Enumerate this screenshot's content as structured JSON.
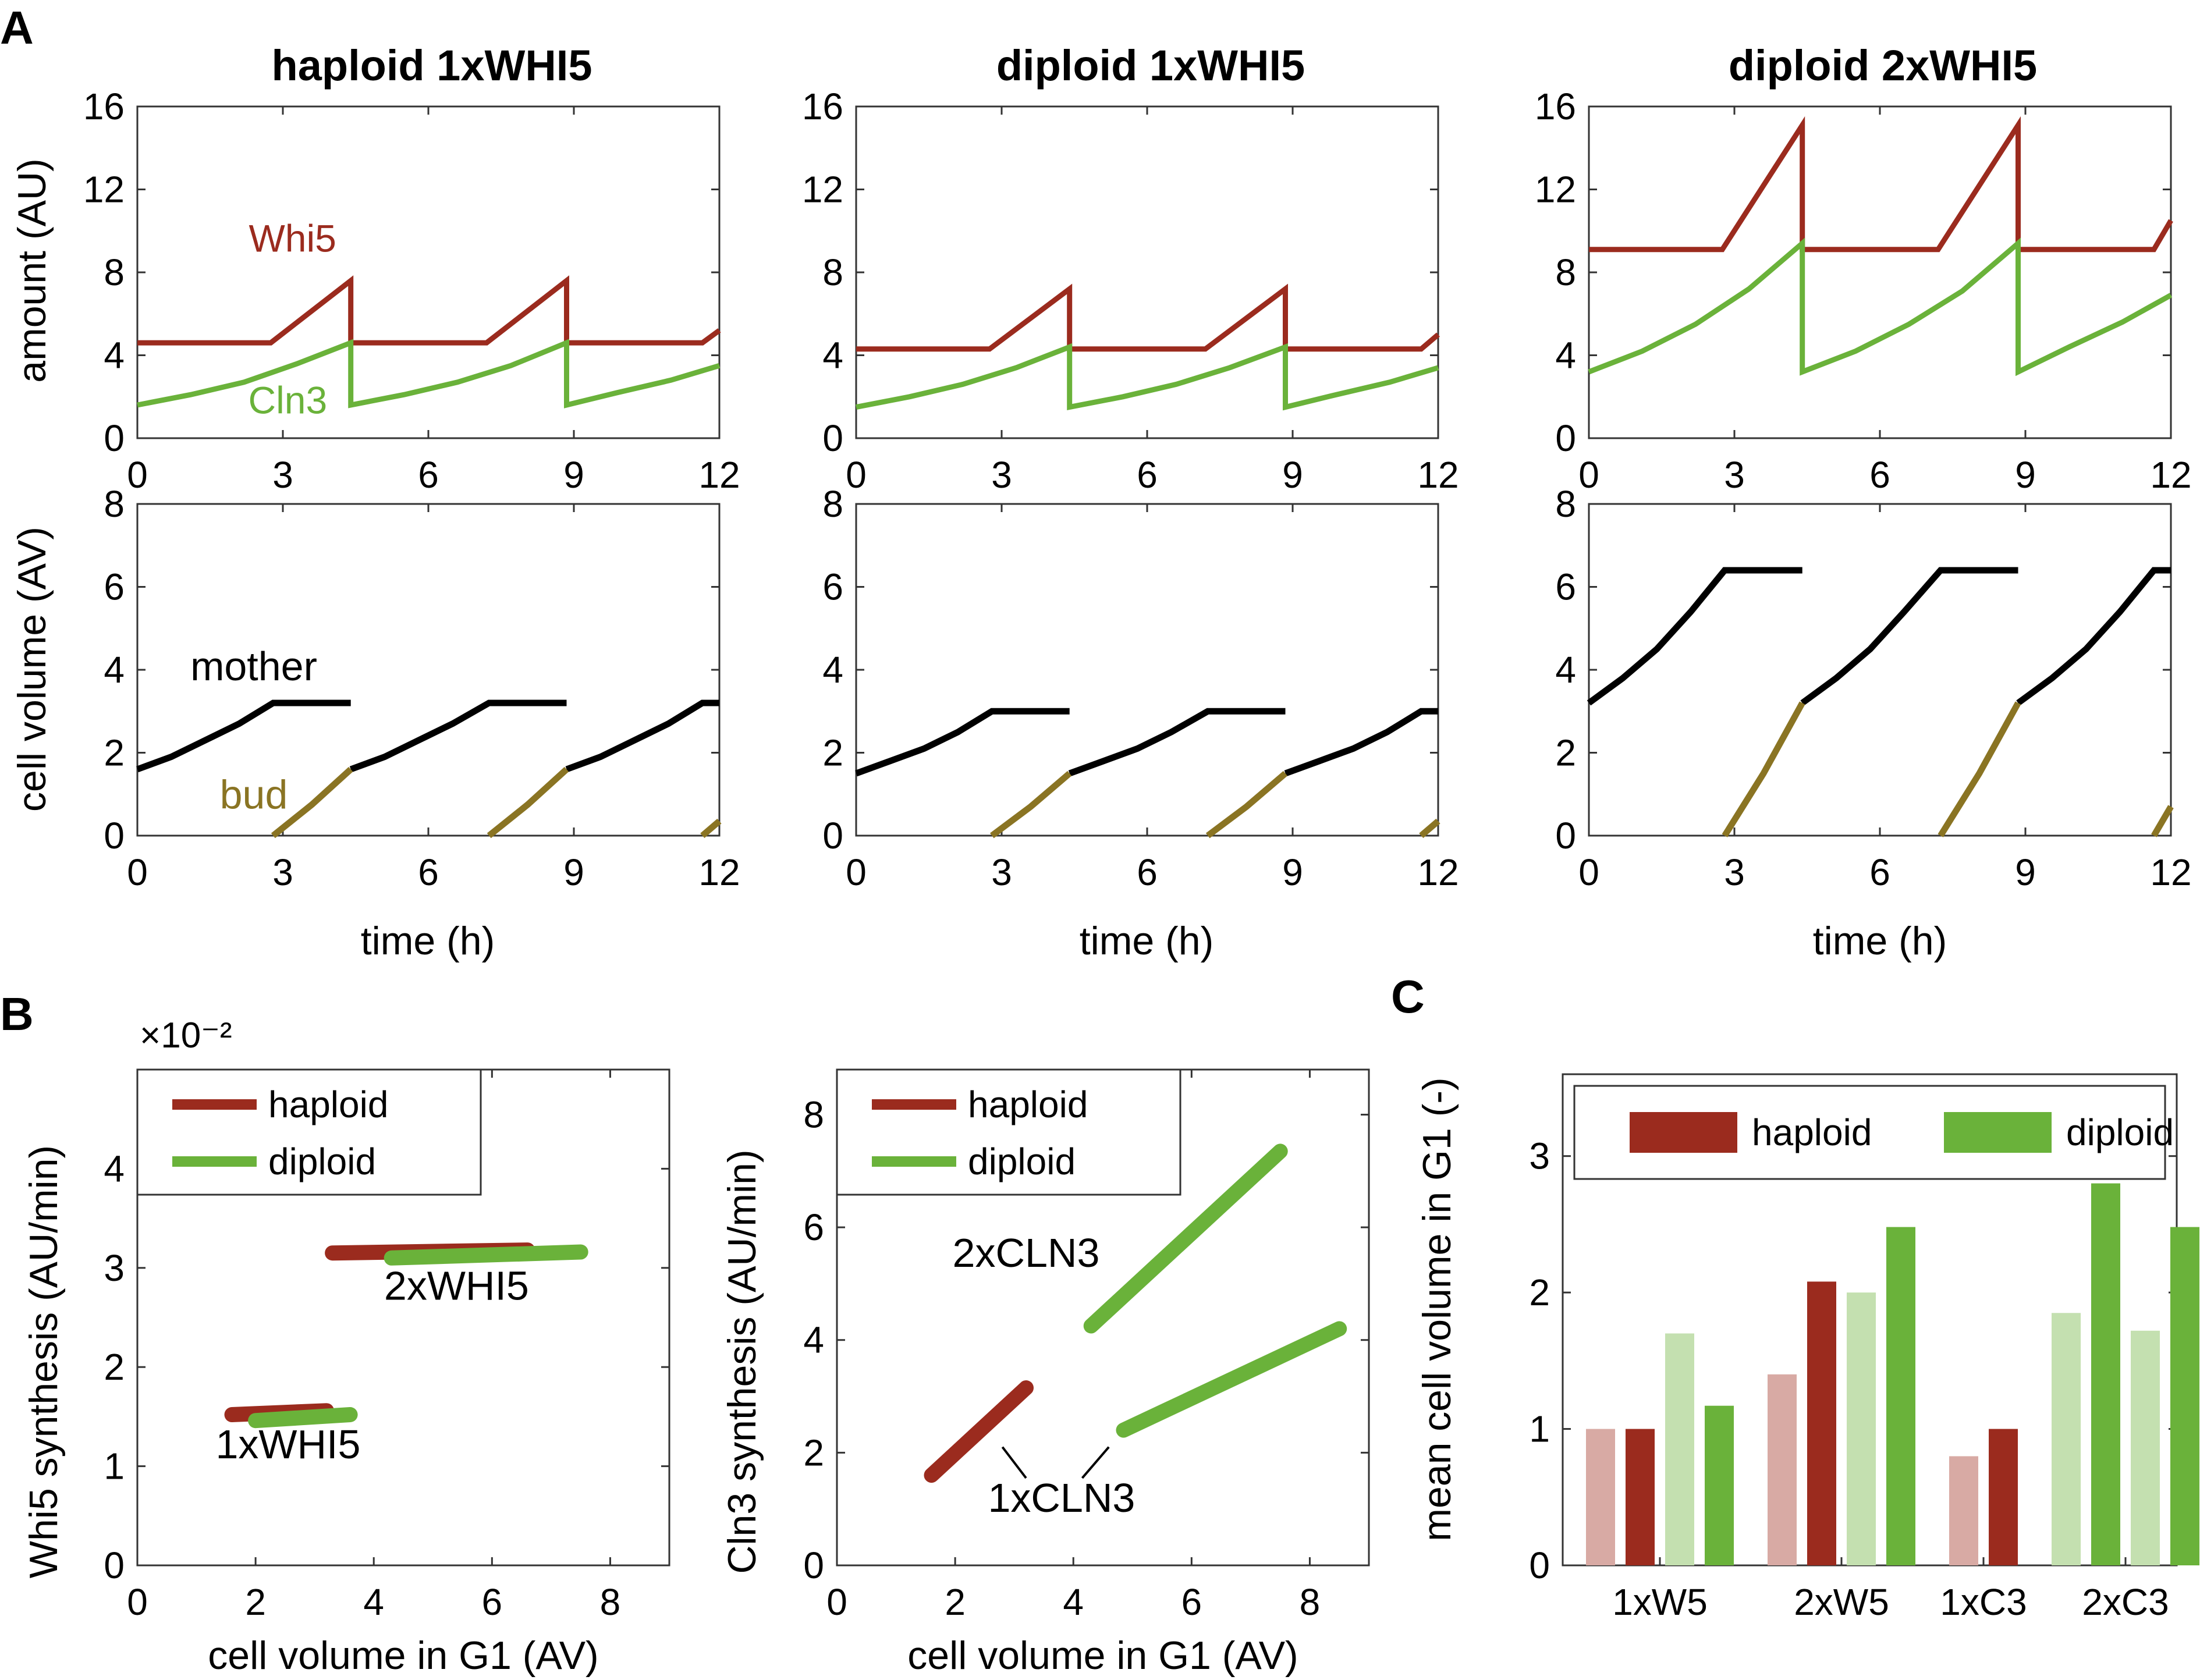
{
  "panel_labels": {
    "A": "A",
    "B": "B",
    "C": "C"
  },
  "colors": {
    "whi5": "#9b2b1e",
    "cln3": "#6ab23a",
    "mother": "#000000",
    "bud": "#8a7423",
    "haploid": "#9b2b1e",
    "diploid": "#6ab23a",
    "haploid_light": "#d8aaa4",
    "diploid_light": "#c4e0b0"
  },
  "chart_data": [
    {
      "id": "A-amount-haploid",
      "type": "line",
      "title": "haploid 1xWHI5",
      "xlabel": "",
      "ylabel": "amount (AU)",
      "xlim": [
        0,
        12
      ],
      "ylim": [
        0,
        16
      ],
      "xticks": [
        "0",
        "3",
        "6",
        "9",
        "12"
      ],
      "yticks": [
        "0",
        "4",
        "8",
        "12",
        "16"
      ],
      "series": [
        {
          "name": "Whi5",
          "color": "whi5",
          "x": [
            0,
            2.75,
            4.4,
            4.4,
            7.2,
            8.85,
            8.85,
            11.65,
            12
          ],
          "y": [
            4.6,
            4.6,
            7.6,
            4.6,
            4.6,
            7.6,
            4.6,
            4.6,
            5.2
          ]
        },
        {
          "name": "Cln3",
          "color": "cln3",
          "x": [
            0,
            1.1,
            2.2,
            3.3,
            4.4,
            4.4,
            5.5,
            6.6,
            7.7,
            8.85,
            8.85,
            9.9,
            11,
            12
          ],
          "y": [
            1.6,
            2.1,
            2.7,
            3.6,
            4.6,
            1.6,
            2.1,
            2.7,
            3.5,
            4.6,
            1.6,
            2.2,
            2.8,
            3.5
          ]
        }
      ],
      "annotations": [
        {
          "text": "Whi5",
          "color": "whi5"
        },
        {
          "text": "Cln3",
          "color": "cln3"
        }
      ]
    },
    {
      "id": "A-amount-dip1",
      "type": "line",
      "title": "diploid 1xWHI5",
      "xlim": [
        0,
        12
      ],
      "ylim": [
        0,
        16
      ],
      "xticks": [
        "0",
        "3",
        "6",
        "9",
        "12"
      ],
      "yticks": [
        "0",
        "4",
        "8",
        "12",
        "16"
      ],
      "series": [
        {
          "color": "whi5",
          "x": [
            0,
            2.75,
            4.4,
            4.4,
            7.2,
            8.85,
            8.85,
            11.65,
            12
          ],
          "y": [
            4.3,
            4.3,
            7.2,
            4.3,
            4.3,
            7.2,
            4.3,
            4.3,
            5.0
          ]
        },
        {
          "color": "cln3",
          "x": [
            0,
            1.1,
            2.2,
            3.3,
            4.4,
            4.4,
            5.5,
            6.6,
            7.7,
            8.85,
            8.85,
            9.9,
            11,
            12
          ],
          "y": [
            1.5,
            2.0,
            2.6,
            3.4,
            4.4,
            1.5,
            2.0,
            2.6,
            3.4,
            4.4,
            1.5,
            2.1,
            2.7,
            3.4
          ]
        }
      ]
    },
    {
      "id": "A-amount-dip2",
      "type": "line",
      "title": "diploid 2xWHI5",
      "xlim": [
        0,
        12
      ],
      "ylim": [
        0,
        16
      ],
      "xticks": [
        "0",
        "3",
        "6",
        "9",
        "12"
      ],
      "yticks": [
        "0",
        "4",
        "8",
        "12",
        "16"
      ],
      "series": [
        {
          "color": "whi5",
          "x": [
            0,
            2.75,
            4.4,
            4.4,
            7.2,
            8.85,
            8.85,
            11.65,
            12
          ],
          "y": [
            9.1,
            9.1,
            15.1,
            9.1,
            9.1,
            15.1,
            9.1,
            9.1,
            10.5
          ]
        },
        {
          "color": "cln3",
          "x": [
            0,
            1.1,
            2.2,
            3.3,
            4.4,
            4.4,
            5.5,
            6.6,
            7.7,
            8.85,
            8.85,
            9.9,
            11,
            12
          ],
          "y": [
            3.2,
            4.2,
            5.5,
            7.2,
            9.4,
            3.2,
            4.2,
            5.5,
            7.1,
            9.4,
            3.2,
            4.4,
            5.6,
            6.9
          ]
        }
      ]
    },
    {
      "id": "A-volume-haploid",
      "type": "line",
      "xlabel": "time (h)",
      "ylabel": "cell volume (AV)",
      "xlim": [
        0,
        12
      ],
      "ylim": [
        0,
        8
      ],
      "xticks": [
        "0",
        "3",
        "6",
        "9",
        "12"
      ],
      "yticks": [
        "0",
        "2",
        "4",
        "6",
        "8"
      ],
      "series": [
        {
          "name": "mother",
          "color": "mother",
          "segments": [
            {
              "x": [
                0,
                0.7,
                1.4,
                2.1,
                2.8,
                4.4
              ],
              "y": [
                1.6,
                1.9,
                2.3,
                2.7,
                3.2,
                3.2
              ]
            },
            {
              "x": [
                4.4,
                5.1,
                5.8,
                6.5,
                7.25,
                8.85
              ],
              "y": [
                1.6,
                1.9,
                2.3,
                2.7,
                3.2,
                3.2
              ]
            },
            {
              "x": [
                8.85,
                9.55,
                10.25,
                10.95,
                11.65,
                12
              ],
              "y": [
                1.6,
                1.9,
                2.3,
                2.7,
                3.2,
                3.2
              ]
            }
          ]
        },
        {
          "name": "bud",
          "color": "bud",
          "segments": [
            {
              "x": [
                2.8,
                3.6,
                4.4
              ],
              "y": [
                0,
                0.75,
                1.6
              ]
            },
            {
              "x": [
                7.25,
                8.05,
                8.85
              ],
              "y": [
                0,
                0.75,
                1.6
              ]
            },
            {
              "x": [
                11.65,
                12
              ],
              "y": [
                0,
                0.35
              ]
            }
          ]
        }
      ],
      "annotations": [
        {
          "text": "mother",
          "color": "mother"
        },
        {
          "text": "bud",
          "color": "bud"
        }
      ]
    },
    {
      "id": "A-volume-dip1",
      "type": "line",
      "xlabel": "time (h)",
      "xlim": [
        0,
        12
      ],
      "ylim": [
        0,
        8
      ],
      "xticks": [
        "0",
        "3",
        "6",
        "9",
        "12"
      ],
      "yticks": [
        "0",
        "2",
        "4",
        "6",
        "8"
      ],
      "series": [
        {
          "color": "mother",
          "segments": [
            {
              "x": [
                0,
                0.7,
                1.4,
                2.1,
                2.8,
                4.4
              ],
              "y": [
                1.5,
                1.8,
                2.1,
                2.5,
                3.0,
                3.0
              ]
            },
            {
              "x": [
                4.4,
                5.1,
                5.8,
                6.5,
                7.25,
                8.85
              ],
              "y": [
                1.5,
                1.8,
                2.1,
                2.5,
                3.0,
                3.0
              ]
            },
            {
              "x": [
                8.85,
                9.55,
                10.25,
                10.95,
                11.65,
                12
              ],
              "y": [
                1.5,
                1.8,
                2.1,
                2.5,
                3.0,
                3.0
              ]
            }
          ]
        },
        {
          "color": "bud",
          "segments": [
            {
              "x": [
                2.8,
                3.6,
                4.4
              ],
              "y": [
                0,
                0.7,
                1.5
              ]
            },
            {
              "x": [
                7.25,
                8.05,
                8.85
              ],
              "y": [
                0,
                0.7,
                1.5
              ]
            },
            {
              "x": [
                11.65,
                12
              ],
              "y": [
                0,
                0.35
              ]
            }
          ]
        }
      ]
    },
    {
      "id": "A-volume-dip2",
      "type": "line",
      "xlabel": "time (h)",
      "xlim": [
        0,
        12
      ],
      "ylim": [
        0,
        8
      ],
      "xticks": [
        "0",
        "3",
        "6",
        "9",
        "12"
      ],
      "yticks": [
        "0",
        "2",
        "4",
        "6",
        "8"
      ],
      "series": [
        {
          "color": "mother",
          "segments": [
            {
              "x": [
                0,
                0.7,
                1.4,
                2.1,
                2.8,
                4.4
              ],
              "y": [
                3.2,
                3.8,
                4.5,
                5.4,
                6.4,
                6.4
              ]
            },
            {
              "x": [
                4.4,
                5.1,
                5.8,
                6.5,
                7.25,
                8.85
              ],
              "y": [
                3.2,
                3.8,
                4.5,
                5.4,
                6.4,
                6.4
              ]
            },
            {
              "x": [
                8.85,
                9.55,
                10.25,
                10.95,
                11.65,
                12
              ],
              "y": [
                3.2,
                3.8,
                4.5,
                5.4,
                6.4,
                6.4
              ]
            }
          ]
        },
        {
          "color": "bud",
          "segments": [
            {
              "x": [
                2.8,
                3.6,
                4.4
              ],
              "y": [
                0,
                1.5,
                3.2
              ]
            },
            {
              "x": [
                7.25,
                8.05,
                8.85
              ],
              "y": [
                0,
                1.5,
                3.2
              ]
            },
            {
              "x": [
                11.65,
                12
              ],
              "y": [
                0,
                0.7
              ]
            }
          ]
        }
      ]
    },
    {
      "id": "B-whi5",
      "type": "line",
      "xlabel": "cell volume in G1 (AV)",
      "ylabel": "Whi5 synthesis (AU/min)",
      "xlim": [
        0,
        9
      ],
      "ylim": [
        0,
        5
      ],
      "y_exponent": "×10⁻²",
      "xticks": [
        "0",
        "2",
        "4",
        "6",
        "8"
      ],
      "yticks": [
        "0",
        "1",
        "2",
        "3",
        "4"
      ],
      "legend": "top-left",
      "series": [
        {
          "name": "haploid",
          "color": "haploid",
          "segments": [
            {
              "x": [
                1.6,
                3.2
              ],
              "y": [
                1.52,
                1.56
              ]
            },
            {
              "x": [
                3.3,
                6.6
              ],
              "y": [
                3.15,
                3.18
              ]
            }
          ]
        },
        {
          "name": "diploid",
          "color": "diploid",
          "segments": [
            {
              "x": [
                2.0,
                3.6
              ],
              "y": [
                1.46,
                1.52
              ]
            },
            {
              "x": [
                4.3,
                7.5
              ],
              "y": [
                3.1,
                3.16
              ]
            }
          ]
        }
      ],
      "annotations": [
        {
          "text": "2xWHI5"
        },
        {
          "text": "1xWHI5"
        }
      ]
    },
    {
      "id": "B-cln3",
      "type": "line",
      "xlabel": "cell volume in G1 (AV)",
      "ylabel": "Cln3 synthesis (AU/min)",
      "xlim": [
        0,
        9
      ],
      "ylim": [
        0,
        8.8
      ],
      "xticks": [
        "0",
        "2",
        "4",
        "6",
        "8"
      ],
      "yticks": [
        "0",
        "2",
        "4",
        "6",
        "8"
      ],
      "legend": "top-left",
      "series": [
        {
          "name": "haploid",
          "color": "haploid",
          "segments": [
            {
              "x": [
                1.6,
                3.2
              ],
              "y": [
                1.6,
                3.15
              ]
            }
          ]
        },
        {
          "name": "diploid",
          "color": "diploid",
          "segments": [
            {
              "x": [
                4.3,
                7.5
              ],
              "y": [
                4.25,
                7.35
              ]
            },
            {
              "x": [
                4.85,
                8.5
              ],
              "y": [
                2.4,
                4.2
              ]
            }
          ]
        }
      ],
      "annotations": [
        {
          "text": "2xCLN3"
        },
        {
          "text": "1xCLN3"
        }
      ]
    },
    {
      "id": "C",
      "type": "bar",
      "xlabel": "",
      "ylabel": "mean cell volume in G1 (-)",
      "ylim": [
        0,
        3.6
      ],
      "yticks": [
        "0",
        "1",
        "2",
        "3"
      ],
      "categories": [
        "1xW5",
        "2xW5",
        "1xC3",
        "2xC3"
      ],
      "legend": "top",
      "series": [
        {
          "name": "haploid",
          "values": [
            1.0,
            2.08,
            1.0,
            2.8
          ],
          "note": "dark bars, 2nd and 3rd of each group are haploid/diploid"
        }
      ],
      "bars": [
        {
          "group": 0,
          "color": "haploid_light",
          "value": 1.0
        },
        {
          "group": 0,
          "color": "haploid",
          "value": 1.0
        },
        {
          "group": 0,
          "color": "diploid_light",
          "value": 1.7
        },
        {
          "group": 0,
          "color": "diploid",
          "value": 1.17
        },
        {
          "group": 1,
          "color": "haploid_light",
          "value": 1.4
        },
        {
          "group": 1,
          "color": "haploid",
          "value": 2.08
        },
        {
          "group": 1,
          "color": "diploid_light",
          "value": 2.0
        },
        {
          "group": 1,
          "color": "diploid",
          "value": 2.48
        },
        {
          "group": 2,
          "color": "haploid_light",
          "value": 0.8
        },
        {
          "group": 2,
          "color": "haploid",
          "value": 1.0
        },
        {
          "group": 3,
          "color": "diploid_light",
          "value": 1.85
        },
        {
          "group": 3,
          "color": "diploid",
          "value": 2.8
        },
        {
          "group": 3,
          "color": "diploid_light",
          "value": 1.72
        },
        {
          "group": 3,
          "color": "diploid",
          "value": 2.48
        }
      ],
      "legend_entries": [
        {
          "name": "haploid",
          "color": "haploid"
        },
        {
          "name": "diploid",
          "color": "diploid"
        }
      ]
    }
  ]
}
